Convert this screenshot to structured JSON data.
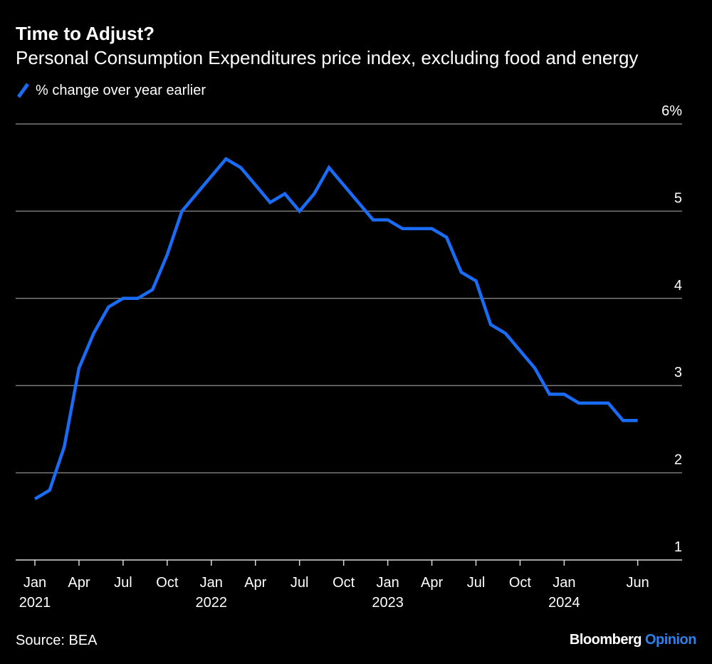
{
  "colors": {
    "background": "#000000",
    "line": "#1a6cf5",
    "grid": "#7a7a7a",
    "text": "#ffffff",
    "brand_accent": "#2f80ed"
  },
  "legend_icon": "diagonal-line-icon",
  "source": "Source: BEA",
  "brand": {
    "name": "Bloomberg",
    "suffix": "Opinion"
  },
  "chart_data": {
    "type": "line",
    "title": "Time to Adjust?",
    "subtitle": "Personal Consumption Expenditures price index, excluding food and energy",
    "legend": "% change over year earlier",
    "legend_position": "top-left",
    "xlabel": "",
    "ylabel": "",
    "y_axis_side": "right",
    "ylim": [
      1,
      6
    ],
    "y_ticks": [
      {
        "value": 6,
        "label": "6%"
      },
      {
        "value": 5,
        "label": "5"
      },
      {
        "value": 4,
        "label": "4"
      },
      {
        "value": 3,
        "label": "3"
      },
      {
        "value": 2,
        "label": "2"
      },
      {
        "value": 1,
        "label": "1"
      }
    ],
    "x_ticks": [
      {
        "index": 0,
        "month": "Jan",
        "year": "2021"
      },
      {
        "index": 3,
        "month": "Apr",
        "year": ""
      },
      {
        "index": 6,
        "month": "Jul",
        "year": ""
      },
      {
        "index": 9,
        "month": "Oct",
        "year": ""
      },
      {
        "index": 12,
        "month": "Jan",
        "year": "2022"
      },
      {
        "index": 15,
        "month": "Apr",
        "year": ""
      },
      {
        "index": 18,
        "month": "Jul",
        "year": ""
      },
      {
        "index": 21,
        "month": "Oct",
        "year": ""
      },
      {
        "index": 24,
        "month": "Jan",
        "year": "2023"
      },
      {
        "index": 27,
        "month": "Apr",
        "year": ""
      },
      {
        "index": 30,
        "month": "Jul",
        "year": ""
      },
      {
        "index": 33,
        "month": "Oct",
        "year": ""
      },
      {
        "index": 36,
        "month": "Jan",
        "year": "2024"
      },
      {
        "index": 41,
        "month": "Jun",
        "year": ""
      }
    ],
    "series": [
      {
        "name": "% change over year earlier",
        "start": "Jan 2021",
        "frequency": "monthly",
        "values": [
          1.7,
          1.8,
          2.3,
          3.2,
          3.6,
          3.9,
          4.0,
          4.0,
          4.1,
          4.5,
          5.0,
          5.2,
          5.4,
          5.6,
          5.5,
          5.3,
          5.1,
          5.2,
          5.0,
          5.2,
          5.5,
          5.3,
          5.1,
          4.9,
          4.9,
          4.8,
          4.8,
          4.8,
          4.7,
          4.3,
          4.2,
          3.7,
          3.6,
          3.4,
          3.2,
          2.9,
          2.9,
          2.8,
          2.8,
          2.8,
          2.6,
          2.6
        ]
      }
    ]
  }
}
